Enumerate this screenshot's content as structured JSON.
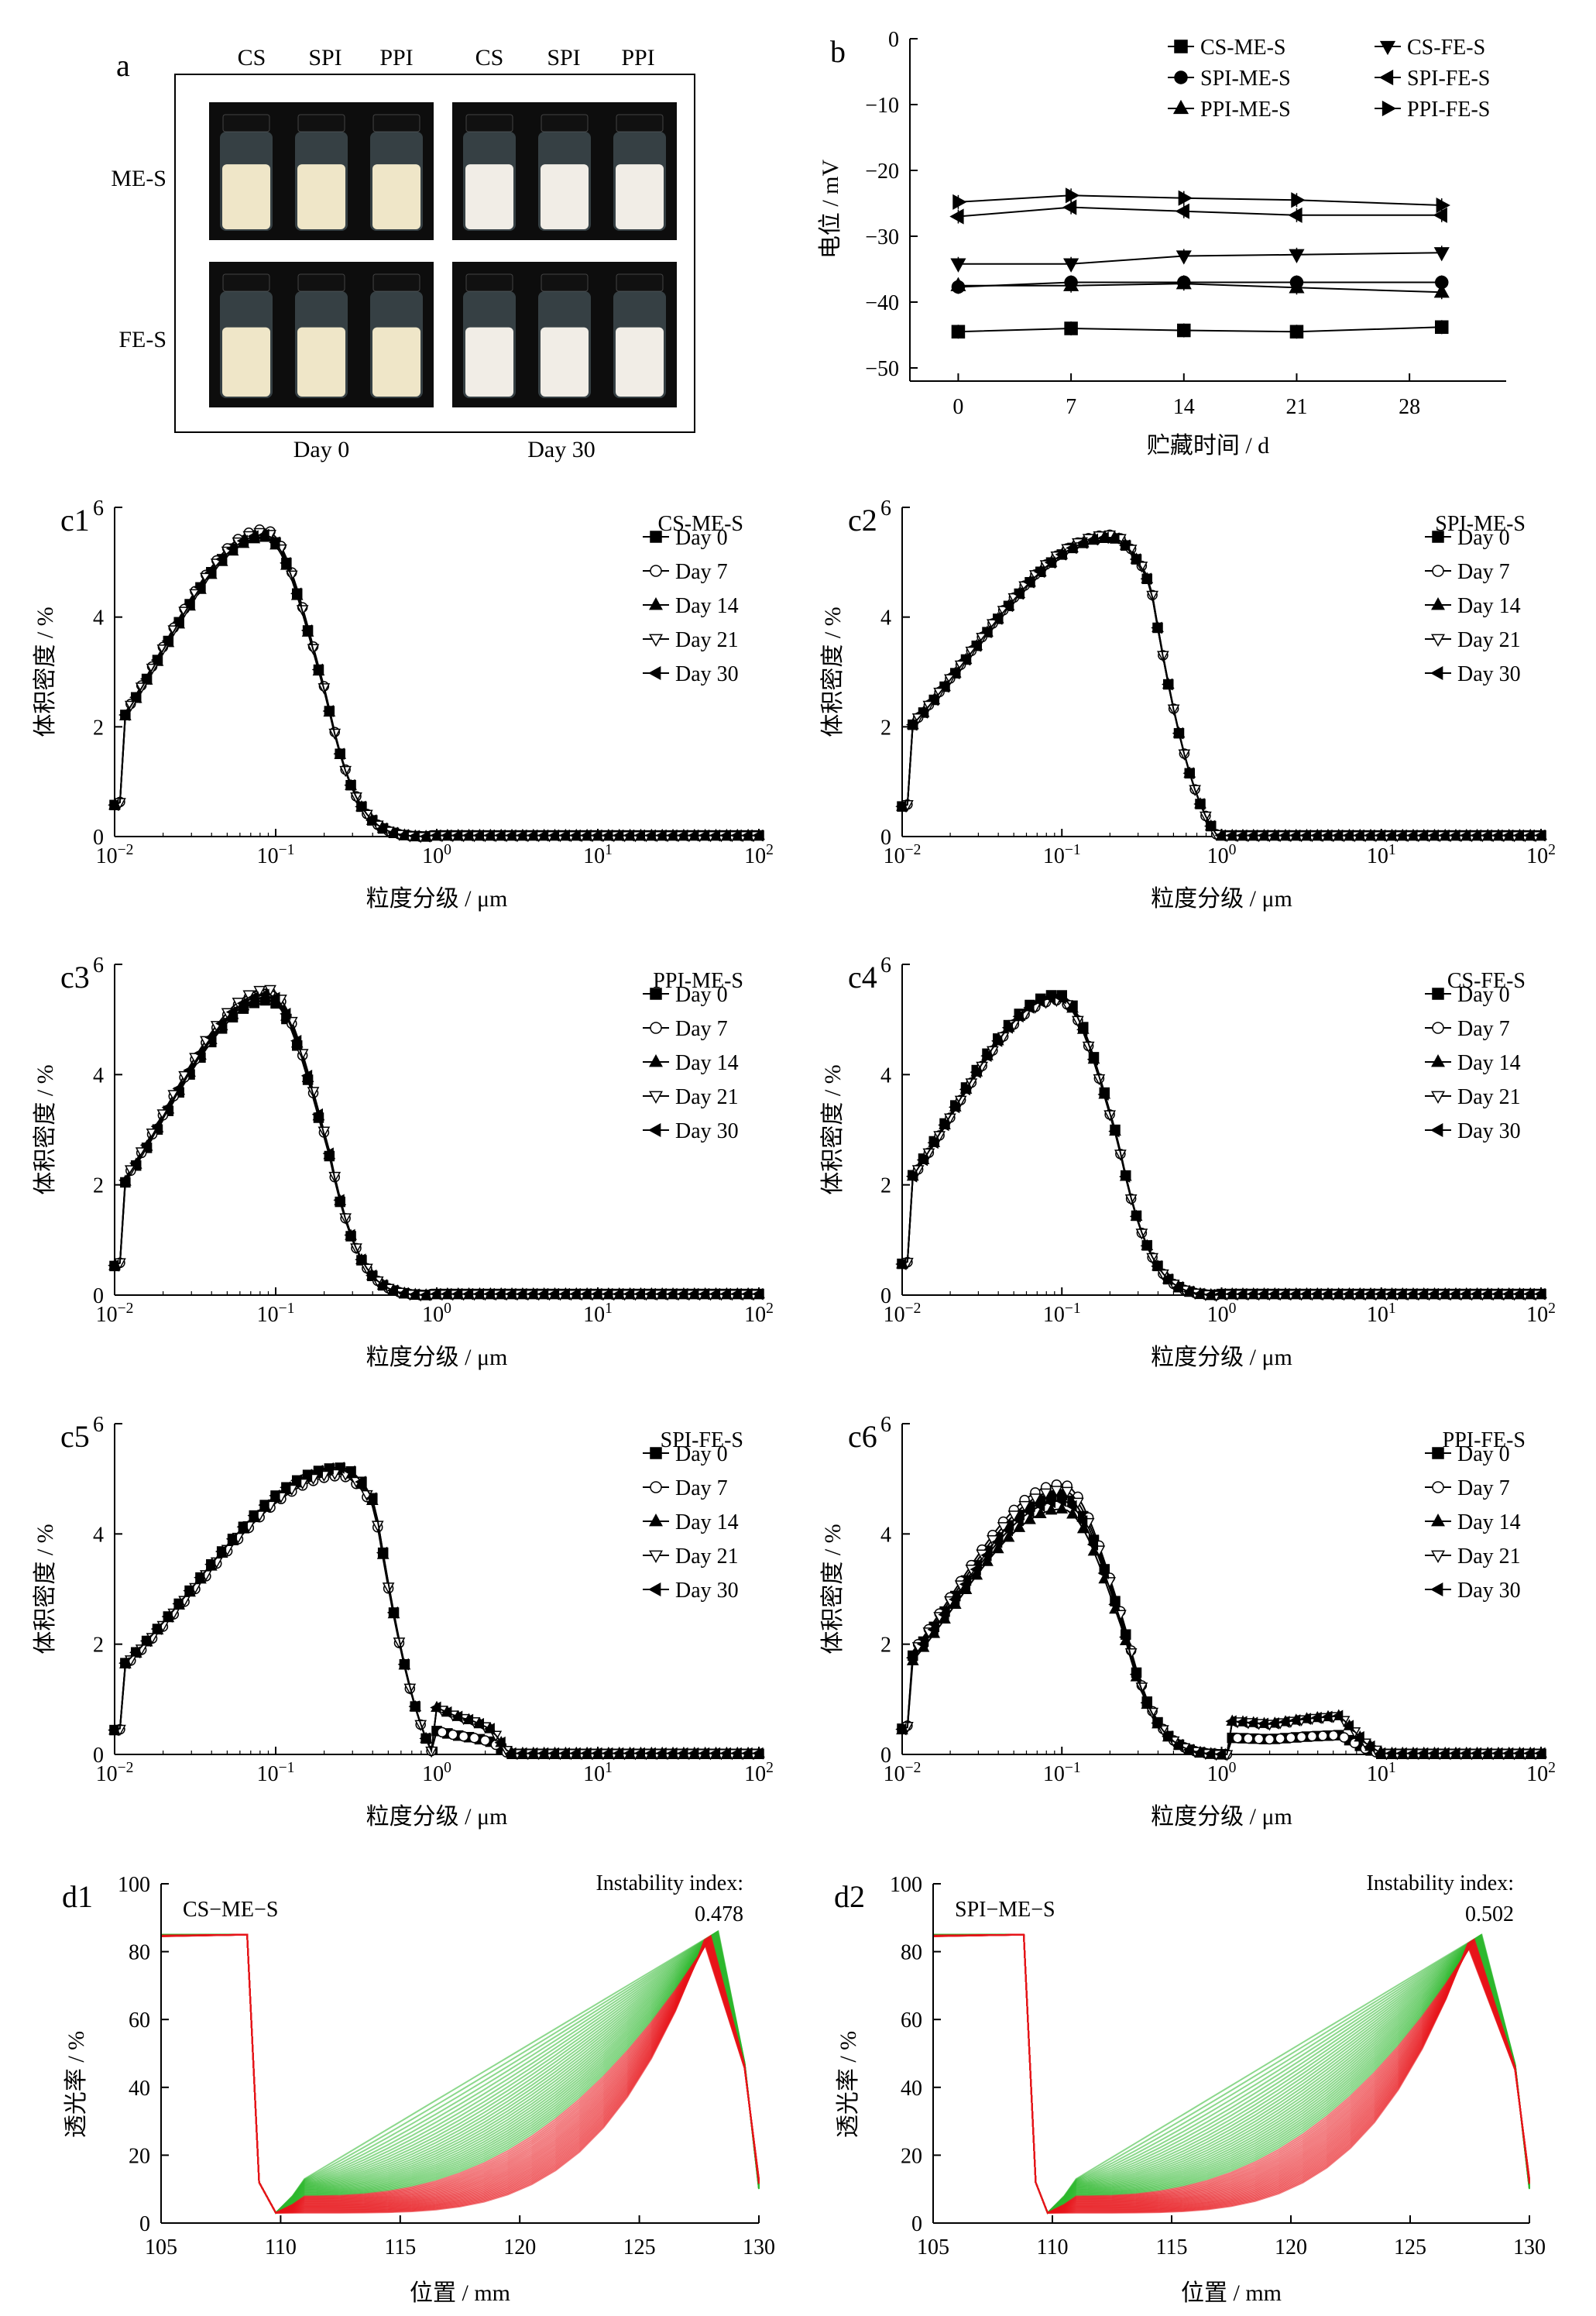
{
  "panel_a": {
    "label": "a",
    "columns": [
      "CS",
      "SPI",
      "PPI",
      "CS",
      "SPI",
      "PPI"
    ],
    "rows": [
      "ME-S",
      "FE-S"
    ],
    "days": [
      "Day 0",
      "Day 30"
    ],
    "colors": {
      "background": "#0d0d0d",
      "emulsion_day0": "#efe6c8",
      "emulsion_day30": "#f1ede6",
      "glass": "#5a6b72",
      "cap": "#111111"
    }
  },
  "chart_data": [
    {
      "id": "b",
      "type": "line",
      "label": "b",
      "xlabel": "贮藏时间 / d",
      "ylabel": "电位 / mV",
      "xlim": [
        -3,
        34
      ],
      "ylim": [
        -52,
        0
      ],
      "xticks": [
        0,
        7,
        14,
        21,
        28
      ],
      "yticks": [
        0,
        -10,
        -20,
        -30,
        -40,
        -50
      ],
      "x": [
        0,
        7,
        14,
        21,
        30
      ],
      "series": [
        {
          "name": "CS-ME-S",
          "marker": "square",
          "values": [
            -44.5,
            -44,
            -44.3,
            -44.5,
            -43.8
          ]
        },
        {
          "name": "SPI-ME-S",
          "marker": "circle",
          "values": [
            -37.7,
            -37,
            -37,
            -37,
            -37
          ]
        },
        {
          "name": "PPI-ME-S",
          "marker": "triangle-up",
          "values": [
            -37.5,
            -37.5,
            -37.2,
            -37.8,
            -38.5
          ]
        },
        {
          "name": "CS-FE-S",
          "marker": "triangle-down",
          "values": [
            -34.2,
            -34.2,
            -33,
            -32.8,
            -32.5
          ]
        },
        {
          "name": "SPI-FE-S",
          "marker": "triangle-left",
          "values": [
            -27,
            -25.6,
            -26.2,
            -26.8,
            -26.8
          ]
        },
        {
          "name": "PPI-FE-S",
          "marker": "triangle-right",
          "values": [
            -24.8,
            -23.8,
            -24.2,
            -24.5,
            -25.3
          ]
        }
      ]
    },
    {
      "id": "c1",
      "type": "line",
      "label": "c1",
      "title": "CS-ME-S",
      "xscale": "log",
      "xlim": [
        0.01,
        100
      ],
      "ylim": [
        0,
        6
      ],
      "xticks": [
        "10^-2",
        "10^-1",
        "10^0",
        "10^1",
        "10^2"
      ],
      "yticks": [
        0,
        2,
        4,
        6
      ],
      "xlabel": "粒度分级 / μm",
      "ylabel": "体积密度 / %",
      "mode": "x10",
      "peak_size": 0.085,
      "peak_values": [
        5.5,
        5.6,
        5.45,
        5.55,
        5.5
      ],
      "sigma": 0.4,
      "end_size": 0.91,
      "tail": [],
      "series": [
        "Day 0",
        "Day 7",
        "Day 14",
        "Day 21",
        "Day 30"
      ]
    },
    {
      "id": "c2",
      "type": "line",
      "label": "c2",
      "title": "SPI-ME-S",
      "xscale": "log",
      "xlim": [
        0.01,
        100
      ],
      "ylim": [
        0,
        6
      ],
      "xticks": [
        "10^-2",
        "10^-1",
        "10^0",
        "10^1",
        "10^2"
      ],
      "yticks": [
        0,
        2,
        4,
        6
      ],
      "xlabel": "粒度分级 / μm",
      "ylabel": "体积密度 / %",
      "mode": "x20",
      "peak_size": 0.2,
      "peak_values": [
        5.45,
        5.5,
        5.45,
        5.5,
        5.45
      ],
      "sigma": 0.55,
      "end_size": 0.95,
      "tail": [],
      "series": [
        "Day 0",
        "Day 7",
        "Day 14",
        "Day 21",
        "Day 30"
      ]
    },
    {
      "id": "c3",
      "type": "line",
      "label": "c3",
      "title": "PPI-ME-S",
      "xscale": "log",
      "xlim": [
        0.01,
        100
      ],
      "ylim": [
        0,
        6
      ],
      "xticks": [
        "10^-2",
        "10^-1",
        "10^0",
        "10^1",
        "10^2"
      ],
      "yticks": [
        0,
        2,
        4,
        6
      ],
      "xlabel": "粒度分级 / μm",
      "ylabel": "体积密度 / %",
      "mode": "x10",
      "peak_size": 0.09,
      "peak_values": [
        5.35,
        5.5,
        5.4,
        5.55,
        5.45
      ],
      "sigma": 0.4,
      "end_size": 0.91,
      "tail": [],
      "series": [
        "Day 0",
        "Day 7",
        "Day 14",
        "Day 21",
        "Day 30"
      ]
    },
    {
      "id": "c4",
      "type": "line",
      "label": "c4",
      "title": "CS-FE-S",
      "xscale": "log",
      "xlim": [
        0.01,
        100
      ],
      "ylim": [
        0,
        6
      ],
      "xticks": [
        "10^-2",
        "10^-1",
        "10^0",
        "10^1",
        "10^2"
      ],
      "yticks": [
        0,
        2,
        4,
        6
      ],
      "xlabel": "粒度分级 / μm",
      "ylabel": "体积密度 / %",
      "mode": "x10",
      "peak_size": 0.095,
      "peak_values": [
        5.45,
        5.35,
        5.4,
        5.35,
        5.4
      ],
      "sigma": 0.42,
      "end_size": 0.95,
      "tail": [],
      "series": [
        "Day 0",
        "Day 7",
        "Day 14",
        "Day 21",
        "Day 30"
      ]
    },
    {
      "id": "c5",
      "type": "line",
      "label": "c5",
      "title": "SPI-FE-S",
      "xscale": "log",
      "xlim": [
        0.01,
        100
      ],
      "ylim": [
        0,
        6
      ],
      "xticks": [
        "10^-2",
        "10^-1",
        "10^0",
        "10^1",
        "10^2"
      ],
      "yticks": [
        0,
        2,
        4,
        6
      ],
      "xlabel": "粒度分级 / μm",
      "ylabel": "体积密度 / %",
      "mode": "x20",
      "peak_size": 0.25,
      "peak_values": [
        5.2,
        5.05,
        5.15,
        5.1,
        5.2
      ],
      "sigma": 0.55,
      "end_size": 0.95,
      "tail": [
        [
          1.0,
          0.85
        ],
        [
          1.3,
          0.7
        ],
        [
          1.7,
          0.6
        ],
        [
          2.2,
          0.45
        ],
        [
          2.8,
          0.02
        ]
      ],
      "series": [
        "Day 0",
        "Day 7",
        "Day 14",
        "Day 21",
        "Day 30"
      ]
    },
    {
      "id": "c6",
      "type": "line",
      "label": "c6",
      "title": "PPI-FE-S",
      "xscale": "log",
      "xlim": [
        0.01,
        100
      ],
      "ylim": [
        0,
        6
      ],
      "xticks": [
        "10^-2",
        "10^-1",
        "10^0",
        "10^1",
        "10^2"
      ],
      "yticks": [
        0,
        2,
        4,
        6
      ],
      "xlabel": "粒度分级 / μm",
      "ylabel": "体积密度 / %",
      "mode": "x10",
      "peak_size": 0.1,
      "peak_values": [
        4.7,
        4.9,
        4.45,
        4.8,
        4.6
      ],
      "sigma": 0.42,
      "end_size": 1.1,
      "tail": [
        [
          1.2,
          0.6
        ],
        [
          2,
          0.55
        ],
        [
          3.5,
          0.65
        ],
        [
          5.5,
          0.7
        ],
        [
          8,
          0.2
        ],
        [
          10,
          0.02
        ]
      ],
      "series": [
        "Day 0",
        "Day 7",
        "Day 14",
        "Day 21",
        "Day 30"
      ]
    },
    {
      "id": "d1",
      "type": "line",
      "label": "d1",
      "title": "CS−ME−S",
      "annotation": "Instability index:",
      "index_value": "0.478",
      "xlim": [
        105,
        130
      ],
      "ylim": [
        0,
        100
      ],
      "xticks": [
        105,
        110,
        115,
        120,
        125,
        130
      ],
      "yticks": [
        0,
        20,
        40,
        60,
        80,
        100
      ],
      "xlabel": "位置 / mm",
      "ylabel": "透光率 / %",
      "colors": {
        "early": "#2db82d",
        "late": "#e8141a"
      },
      "profile": {
        "plateau": 84,
        "drop_at": 108.8,
        "floor": 2,
        "peak_x": 128.3,
        "peak_y_early": 86,
        "peak_y_late": 83
      }
    },
    {
      "id": "d2",
      "type": "line",
      "label": "d2",
      "title": "SPI−ME−S",
      "annotation": "Instability index:",
      "index_value": "0.502",
      "xlim": [
        105,
        130
      ],
      "ylim": [
        0,
        100
      ],
      "xticks": [
        105,
        110,
        115,
        120,
        125,
        130
      ],
      "yticks": [
        0,
        20,
        40,
        60,
        80,
        100
      ],
      "xlabel": "位置 / mm",
      "ylabel": "透光率 / %",
      "colors": {
        "early": "#2db82d",
        "late": "#e8141a"
      },
      "profile": {
        "plateau": 84,
        "drop_at": 109.0,
        "floor": 2,
        "peak_x": 128.0,
        "peak_y_early": 85,
        "peak_y_late": 82
      }
    }
  ]
}
